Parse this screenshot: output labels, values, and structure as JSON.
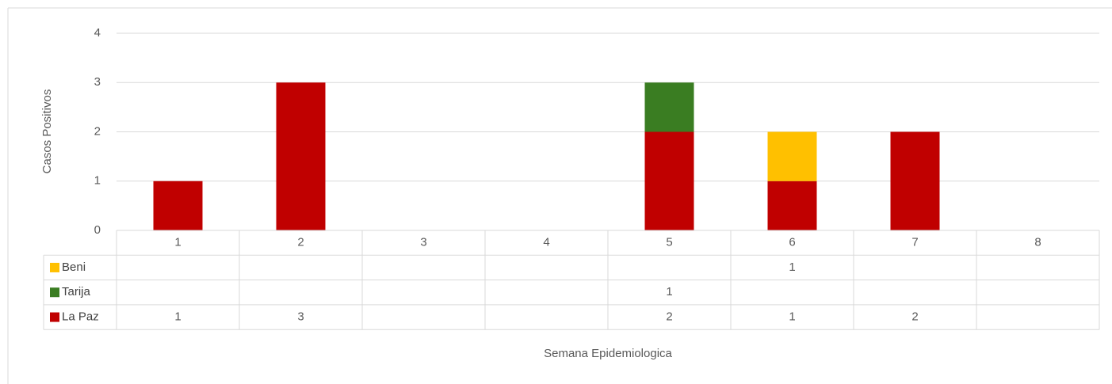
{
  "chart_data": {
    "type": "bar",
    "stacked": true,
    "y_label": "Casos Positivos",
    "x_label": "Semana Epidemiologica",
    "categories": [
      "1",
      "2",
      "3",
      "4",
      "5",
      "6",
      "7",
      "8"
    ],
    "series": [
      {
        "name": "La Paz",
        "color": "#c00000",
        "values": [
          1,
          3,
          null,
          null,
          2,
          1,
          2,
          null
        ]
      },
      {
        "name": "Tarija",
        "color": "#3a7d22",
        "values": [
          null,
          null,
          null,
          null,
          1,
          null,
          null,
          null
        ]
      },
      {
        "name": "Beni",
        "color": "#ffc000",
        "values": [
          null,
          null,
          null,
          null,
          null,
          1,
          null,
          null
        ]
      }
    ],
    "ylim": [
      0,
      4
    ],
    "yticks": [
      0,
      1,
      2,
      3,
      4
    ],
    "grid": true,
    "data_table": true
  }
}
